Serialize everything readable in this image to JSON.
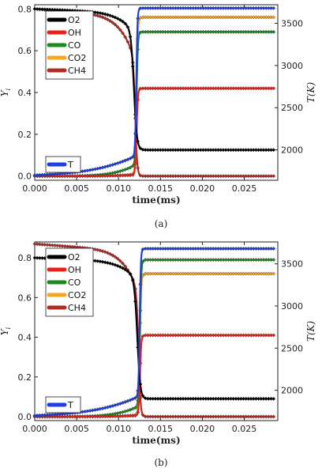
{
  "panels": [
    {
      "caption": "(a)"
    },
    {
      "caption": "(b)"
    }
  ],
  "chart_data": [
    {
      "type": "line",
      "xlabel": "time(ms)",
      "ylabel_left": "Y_i",
      "ylabel_right": "T(K)",
      "xlim": [
        0,
        0.029
      ],
      "ylim_left": [
        -0.02,
        0.82
      ],
      "ylim_right": [
        1640,
        3720
      ],
      "xticks": [
        0.0,
        0.005,
        0.01,
        0.015,
        0.02,
        0.025
      ],
      "xtick_labels": [
        "0.000",
        "0.005",
        "0.010",
        "0.015",
        "0.020",
        "0.025"
      ],
      "yticks_left": [
        0.0,
        0.2,
        0.4,
        0.6,
        0.8
      ],
      "ytick_labels_left": [
        "0.0",
        "0.2",
        "0.4",
        "0.6",
        "0.8"
      ],
      "yticks_right": [
        2000,
        2500,
        3000,
        3500
      ],
      "ytick_labels_right": [
        "2000",
        "2500",
        "3000",
        "3500"
      ],
      "ignition_time": 0.0121,
      "legend_left": "top-left",
      "legend_right": "bottom-left",
      "series": [
        {
          "name": "O2",
          "color": "#000000",
          "axis": "left",
          "initial": 0.8,
          "final": 0.125
        },
        {
          "name": "OH",
          "color": "#e8221b",
          "axis": "left",
          "initial": 0.0,
          "final": 0.42
        },
        {
          "name": "CO",
          "color": "#1e8a1e",
          "axis": "left",
          "initial": 0.0,
          "final": 0.69
        },
        {
          "name": "CO2",
          "color": "#f5a623",
          "axis": "left",
          "initial": 0.0,
          "final": 0.76
        },
        {
          "name": "CH4",
          "color": "#b22c23",
          "axis": "left",
          "initial": 0.8,
          "final": 0.0
        },
        {
          "name": "T",
          "color": "#1f3fe0",
          "axis": "right",
          "initial": 1700,
          "final": 3680
        }
      ]
    },
    {
      "type": "line",
      "xlabel": "time(ms)",
      "ylabel_left": "Y_i",
      "ylabel_right": "T(K)",
      "xlim": [
        0,
        0.029
      ],
      "ylim_left": [
        -0.02,
        0.88
      ],
      "ylim_right": [
        1640,
        3760
      ],
      "xticks": [
        0.0,
        0.005,
        0.01,
        0.015,
        0.02,
        0.025
      ],
      "xtick_labels": [
        "0.000",
        "0.005",
        "0.010",
        "0.015",
        "0.020",
        "0.025"
      ],
      "yticks_left": [
        0.0,
        0.2,
        0.4,
        0.6,
        0.8
      ],
      "ytick_labels_left": [
        "0.0",
        "0.2",
        "0.4",
        "0.6",
        "0.8"
      ],
      "yticks_right": [
        2000,
        2500,
        3000,
        3500
      ],
      "ytick_labels_right": [
        "2000",
        "2500",
        "3000",
        "3500"
      ],
      "ignition_time": 0.0125,
      "legend_left": "top-left",
      "legend_right": "bottom-left",
      "series": [
        {
          "name": "O2",
          "color": "#000000",
          "axis": "left",
          "initial": 0.8,
          "final": 0.09
        },
        {
          "name": "OH",
          "color": "#e8221b",
          "axis": "left",
          "initial": 0.0,
          "final": 0.41
        },
        {
          "name": "CO",
          "color": "#1e8a1e",
          "axis": "left",
          "initial": 0.0,
          "final": 0.79
        },
        {
          "name": "CO2",
          "color": "#f5a623",
          "axis": "left",
          "initial": 0.0,
          "final": 0.72
        },
        {
          "name": "CH4",
          "color": "#b22c23",
          "axis": "left",
          "initial": 0.87,
          "final": 0.0
        },
        {
          "name": "T",
          "color": "#1f3fe0",
          "axis": "right",
          "initial": 1700,
          "final": 3680
        }
      ]
    }
  ]
}
